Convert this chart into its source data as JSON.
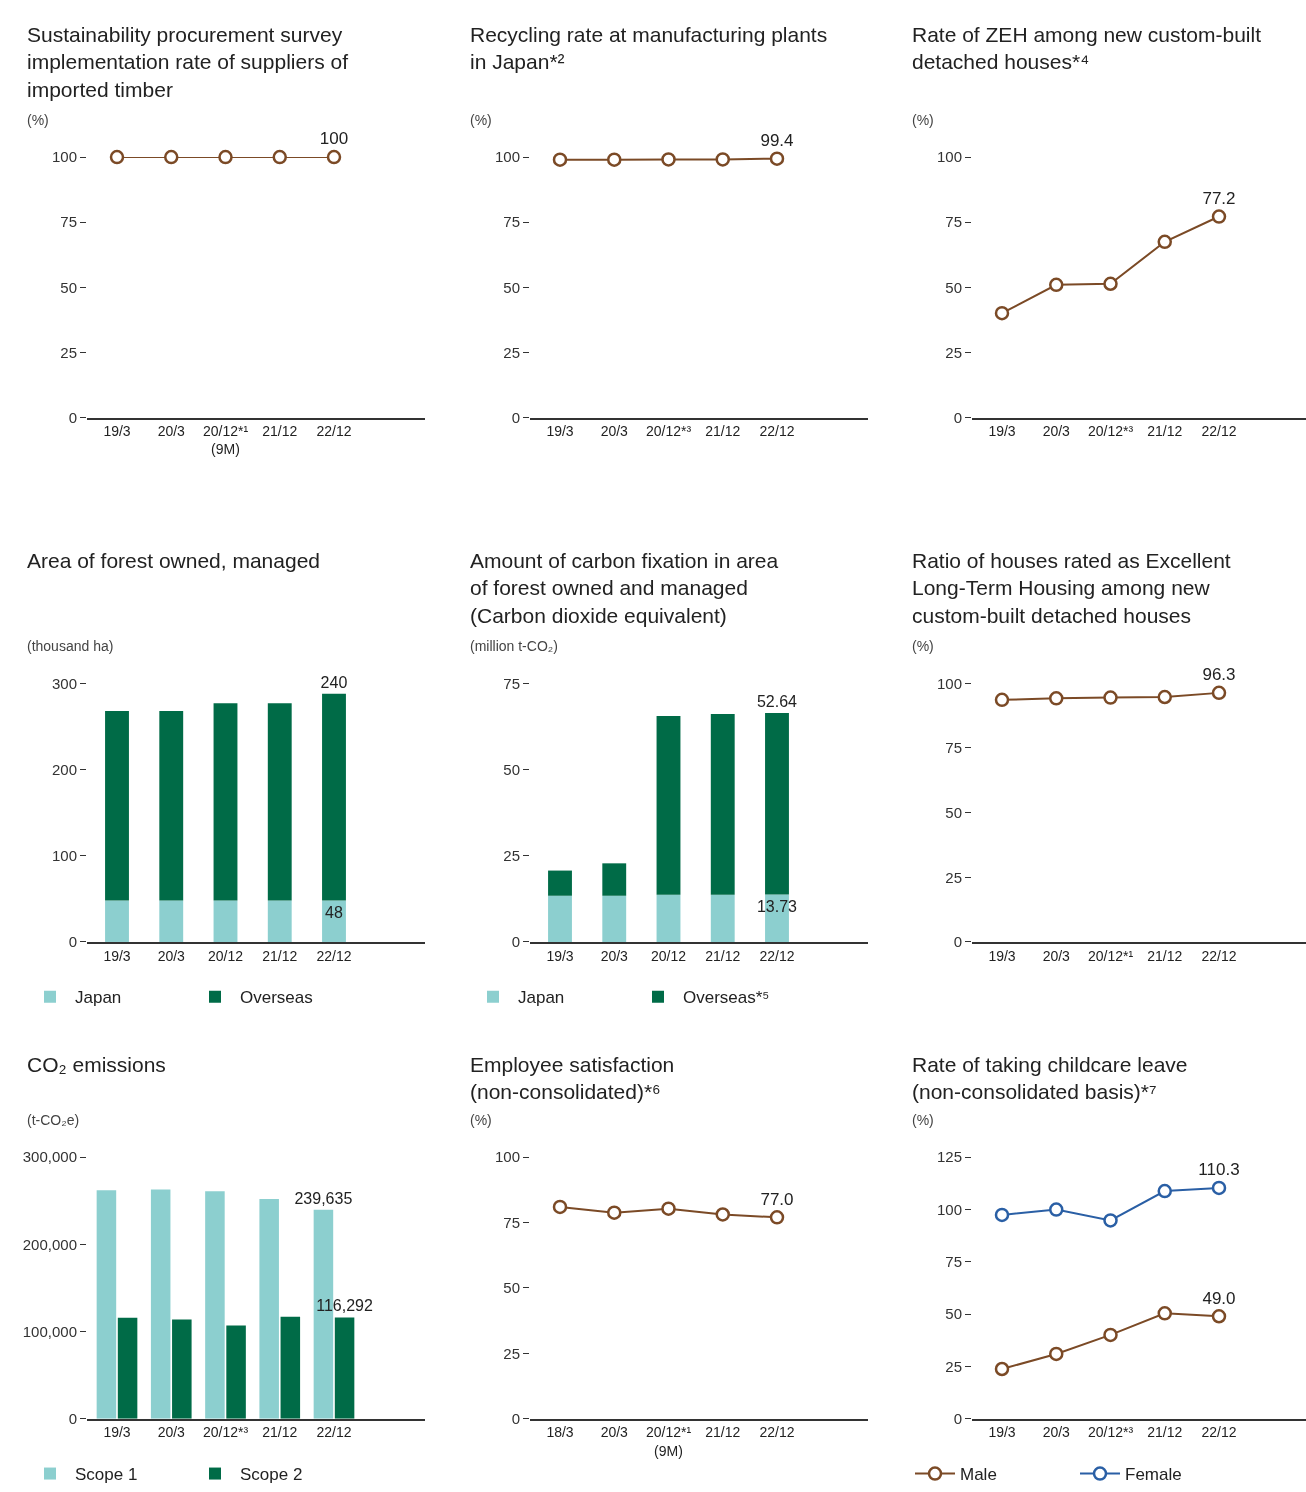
{
  "chart_data": [
    {
      "type": "line",
      "title": "Sustainability procurement survey\nimplementation rate of suppliers of\nimported timber",
      "ylabel": "(%)",
      "categories": [
        "19/3",
        "20/3",
        "20/12*¹\n(9M)",
        "21/12",
        "22/12"
      ],
      "series": [
        {
          "color": "#7b4a26",
          "values": [
            100,
            100,
            100,
            100,
            100
          ],
          "value_labels": [
            null,
            null,
            null,
            null,
            "100"
          ]
        }
      ],
      "ylim": [
        0,
        100
      ],
      "yticks": [
        0,
        25,
        50,
        75,
        100
      ],
      "marker": "circle"
    },
    {
      "type": "line",
      "title": "Recycling rate at manufacturing plants\nin Japan*²",
      "ylabel": "(%)",
      "categories": [
        "19/3",
        "20/3",
        "20/12*³",
        "21/12",
        "22/12"
      ],
      "series": [
        {
          "color": "#7b4a26",
          "values": [
            99.0,
            99.0,
            99.1,
            99.1,
            99.4
          ],
          "value_labels": [
            null,
            null,
            null,
            null,
            "99.4"
          ]
        }
      ],
      "ylim": [
        0,
        100
      ],
      "yticks": [
        0,
        25,
        50,
        75,
        100
      ],
      "marker": "circle"
    },
    {
      "type": "line",
      "title": "Rate of ZEH among new custom-built\ndetached houses*⁴",
      "ylabel": "(%)",
      "categories": [
        "19/3",
        "20/3",
        "20/12*³",
        "21/12",
        "22/12"
      ],
      "series": [
        {
          "color": "#7b4a26",
          "values": [
            40.1,
            51.0,
            51.4,
            67.5,
            77.2
          ],
          "value_labels": [
            null,
            null,
            null,
            null,
            "77.2"
          ]
        }
      ],
      "ylim": [
        0,
        100
      ],
      "yticks": [
        0,
        25,
        50,
        75,
        100
      ],
      "marker": "circle"
    },
    {
      "type": "bar",
      "stacked": true,
      "title": "Area of forest owned, managed",
      "ylabel": "(thousand ha)",
      "categories": [
        "19/3",
        "20/3",
        "20/12",
        "21/12",
        "22/12"
      ],
      "series": [
        {
          "name": "Japan",
          "color": "#8ccfcf",
          "values": [
            48,
            48,
            48,
            48,
            48
          ],
          "value_labels": [
            null,
            null,
            null,
            null,
            "48"
          ]
        },
        {
          "name": "Overseas",
          "color": "#006b47",
          "values": [
            220,
            220,
            229,
            229,
            240
          ],
          "value_labels": [
            null,
            null,
            null,
            null,
            "240"
          ]
        }
      ],
      "ylim": [
        0,
        300
      ],
      "yticks": [
        0,
        100,
        200,
        300
      ],
      "legend": "bottom"
    },
    {
      "type": "bar",
      "stacked": true,
      "title": "Amount of carbon fixation in area\nof forest owned and managed\n(Carbon dioxide equivalent)",
      "ylabel": "(million t-CO₂)",
      "categories": [
        "19/3",
        "20/3",
        "20/12",
        "21/12",
        "22/12"
      ],
      "series": [
        {
          "name": "Japan",
          "color": "#8ccfcf",
          "values": [
            13.4,
            13.4,
            13.7,
            13.7,
            13.73
          ],
          "value_labels": [
            null,
            null,
            null,
            null,
            "13.73"
          ]
        },
        {
          "name": "Overseas*⁵",
          "color": "#006b47",
          "values": [
            7.3,
            9.4,
            51.8,
            52.4,
            52.64
          ],
          "value_labels": [
            null,
            null,
            null,
            null,
            "52.64"
          ]
        }
      ],
      "ylim": [
        0,
        75
      ],
      "yticks": [
        0,
        25,
        50,
        75
      ],
      "legend": "bottom"
    },
    {
      "type": "line",
      "title": "Ratio of houses rated as Excellent\nLong-Term Housing among new\ncustom-built detached houses",
      "ylabel": "(%)",
      "categories": [
        "19/3",
        "20/3",
        "20/12*¹",
        "21/12",
        "22/12"
      ],
      "series": [
        {
          "color": "#7b4a26",
          "values": [
            93.6,
            94.2,
            94.5,
            94.7,
            96.3
          ],
          "value_labels": [
            null,
            null,
            null,
            null,
            "96.3"
          ]
        }
      ],
      "ylim": [
        0,
        100
      ],
      "yticks": [
        0,
        25,
        50,
        75,
        100
      ],
      "marker": "circle"
    },
    {
      "type": "bar",
      "title": "CO₂ emissions",
      "ylabel": "(t-CO₂e)",
      "categories": [
        "19/3",
        "20/3",
        "20/12*³",
        "21/12",
        "22/12"
      ],
      "series": [
        {
          "name": "Scope 1",
          "color": "#8ccfcf",
          "values": [
            262000,
            263000,
            261000,
            252000,
            239635
          ],
          "value_labels": [
            null,
            null,
            null,
            null,
            "239,635"
          ]
        },
        {
          "name": "Scope 2",
          "color": "#006b47",
          "values": [
            116000,
            114000,
            107000,
            117000,
            116292
          ],
          "value_labels": [
            null,
            null,
            null,
            null,
            "116,292"
          ]
        }
      ],
      "ylim": [
        0,
        300000
      ],
      "yticks": [
        0,
        {
          "value": 100000,
          "label": "100,000"
        },
        {
          "value": 200000,
          "label": "200,000"
        },
        {
          "value": 300000,
          "label": "300,000"
        }
      ],
      "legend": "bottom"
    },
    {
      "type": "line",
      "title": "Employee satisfaction\n(non-consolidated)*⁶",
      "ylabel": "(%)",
      "categories": [
        "18/3",
        "20/3",
        "20/12*¹\n(9M)",
        "21/12",
        "22/12"
      ],
      "series": [
        {
          "color": "#7b4a26",
          "values": [
            81.0,
            78.8,
            80.3,
            78.1,
            77.0
          ],
          "value_labels": [
            null,
            null,
            null,
            null,
            "77.0"
          ]
        }
      ],
      "ylim": [
        0,
        100
      ],
      "yticks": [
        0,
        25,
        50,
        75,
        100
      ],
      "marker": "circle"
    },
    {
      "type": "line",
      "title": "Rate of taking childcare leave\n(non-consolidated basis)*⁷",
      "ylabel": "(%)",
      "categories": [
        "19/3",
        "20/3",
        "20/12*³",
        "21/12",
        "22/12"
      ],
      "series": [
        {
          "name": "Male",
          "color": "#7b4a26",
          "values": [
            23.8,
            31.0,
            40.1,
            50.4,
            49.0
          ],
          "value_labels": [
            null,
            null,
            null,
            null,
            "49.0"
          ]
        },
        {
          "name": "Female",
          "color": "#2a5fa5",
          "values": [
            97.4,
            100.0,
            94.8,
            108.8,
            110.3
          ],
          "value_labels": [
            null,
            null,
            null,
            null,
            "110.3"
          ]
        }
      ],
      "ylim": [
        0,
        125
      ],
      "yticks": [
        0,
        25,
        50,
        75,
        100,
        125
      ],
      "marker": "circle",
      "legend": "bottom"
    }
  ]
}
